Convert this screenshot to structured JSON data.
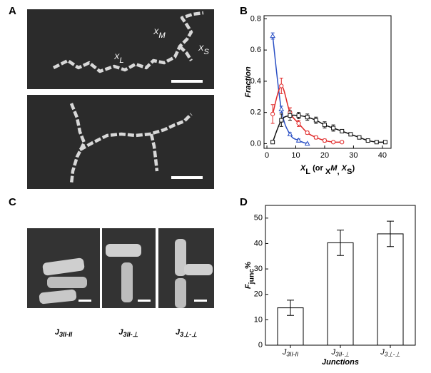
{
  "panels": [
    "A",
    "B",
    "C",
    "D"
  ],
  "panel_a": {
    "labels": [
      [
        "X",
        "M"
      ],
      [
        "X",
        "S"
      ],
      [
        "X",
        "L"
      ]
    ]
  },
  "panel_c": {
    "captions": [
      [
        "J",
        "3II-II"
      ],
      [
        "J",
        "3II-⊥"
      ],
      [
        "J",
        "3⊥-⊥"
      ]
    ]
  },
  "chart_data": [
    {
      "type": "scatter",
      "y_label": "Fraction",
      "x_label": [
        "X",
        "L",
        " (or ",
        "X",
        "M",
        ", ",
        "X",
        "S",
        ")"
      ],
      "xlim": [
        -1,
        43
      ],
      "ylim": [
        -0.03,
        0.82
      ],
      "xticks": [
        0,
        10,
        20,
        30,
        40
      ],
      "yticks": [
        {
          "value": 0,
          "label": "0.0"
        },
        {
          "value": 0.2,
          "label": "0.2"
        },
        {
          "value": 0.4,
          "label": "0.4"
        },
        {
          "value": 0.6,
          "label": "0.6"
        },
        {
          "value": 0.8,
          "label": "0.8"
        }
      ],
      "series": [
        {
          "color": "#2a4fc4",
          "marker": "triangle",
          "x": [
            2,
            5,
            8,
            11,
            14
          ],
          "values": [
            0.69,
            0.22,
            0.06,
            0.02,
            0.0
          ],
          "errors": [
            0.02,
            0.02,
            0.01,
            0.01,
            0.005
          ]
        },
        {
          "color": "#e02a2a",
          "marker": "circle",
          "x": [
            2,
            5,
            8,
            11,
            14,
            17,
            20,
            23,
            26
          ],
          "values": [
            0.19,
            0.37,
            0.2,
            0.13,
            0.07,
            0.04,
            0.02,
            0.01,
            0.01
          ],
          "errors": [
            0.06,
            0.05,
            0.03,
            0.02,
            0.01,
            0.01,
            0.01,
            0.005,
            0.005
          ]
        },
        {
          "color": "#111111",
          "marker": "square",
          "x": [
            2,
            5,
            8,
            11,
            14,
            17,
            20,
            23,
            26,
            29,
            32,
            35,
            38,
            41
          ],
          "values": [
            0.01,
            0.15,
            0.18,
            0.18,
            0.17,
            0.15,
            0.12,
            0.1,
            0.08,
            0.06,
            0.04,
            0.02,
            0.01,
            0.01
          ],
          "errors": [
            0.01,
            0.04,
            0.03,
            0.02,
            0.02,
            0.02,
            0.02,
            0.02,
            0.01,
            0.01,
            0.01,
            0.01,
            0.005,
            0.005
          ]
        }
      ]
    },
    {
      "type": "bar",
      "y_label": [
        "F",
        "junc",
        "%"
      ],
      "x_label": "Junctions",
      "categories": [
        [
          "J",
          "3II-II"
        ],
        [
          "J",
          "3II-⊥"
        ],
        [
          "J",
          "3⊥-⊥"
        ]
      ],
      "values": [
        14.7,
        40.3,
        43.8
      ],
      "errors": [
        3,
        5,
        5
      ],
      "color": "#ffffff",
      "ylim": [
        0,
        55
      ],
      "yticks": [
        0,
        10,
        20,
        30,
        40,
        50
      ]
    }
  ]
}
